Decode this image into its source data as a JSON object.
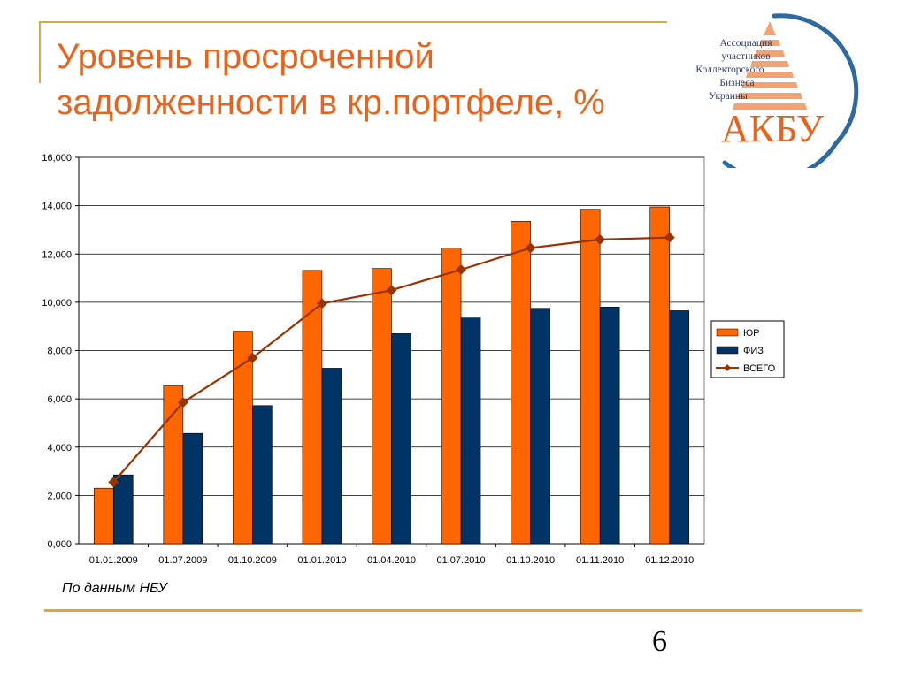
{
  "slide": {
    "title_line1": "Уровень просроченной",
    "title_line2": "задолженности в кр.портфеле, %",
    "source": "По данным НБУ",
    "page_number": "6"
  },
  "logo": {
    "text_line1": "Ассоциация",
    "text_line2": "участников",
    "text_line3": "Коллекторского",
    "text_line4": "Бизнеса",
    "text_line5": "Украины",
    "abbr": "АКБУ"
  },
  "colors": {
    "title": "#e8641c",
    "accent_line": "#e0a83a",
    "series_yur": "#ff6600",
    "series_fiz": "#003366",
    "series_total": "#993300",
    "logo_blue": "#2e6aa0"
  },
  "chart_data": {
    "type": "bar",
    "categories": [
      "01.01.2009",
      "01.07.2009",
      "01.10.2009",
      "01.01.2010",
      "01.04.2010",
      "01.07.2010",
      "01.10.2010",
      "01.11.2010",
      "01.12.2010"
    ],
    "series": [
      {
        "name": "ЮР",
        "type": "bar",
        "values": [
          2.3,
          6.55,
          8.8,
          11.32,
          11.4,
          12.25,
          13.35,
          13.85,
          13.95
        ]
      },
      {
        "name": "ФИЗ",
        "type": "bar",
        "values": [
          2.85,
          4.57,
          5.72,
          7.27,
          8.7,
          9.35,
          9.75,
          9.8,
          9.65
        ]
      },
      {
        "name": "ВСЕГО",
        "type": "line",
        "values": [
          2.55,
          5.85,
          7.7,
          9.95,
          10.5,
          11.35,
          12.25,
          12.6,
          12.68
        ]
      }
    ],
    "ylim": [
      0,
      16
    ],
    "yticks": [
      "0,000",
      "2,000",
      "4,000",
      "6,000",
      "8,000",
      "10,000",
      "12,000",
      "14,000",
      "16,000"
    ],
    "grid": true,
    "legend_position": "right"
  }
}
